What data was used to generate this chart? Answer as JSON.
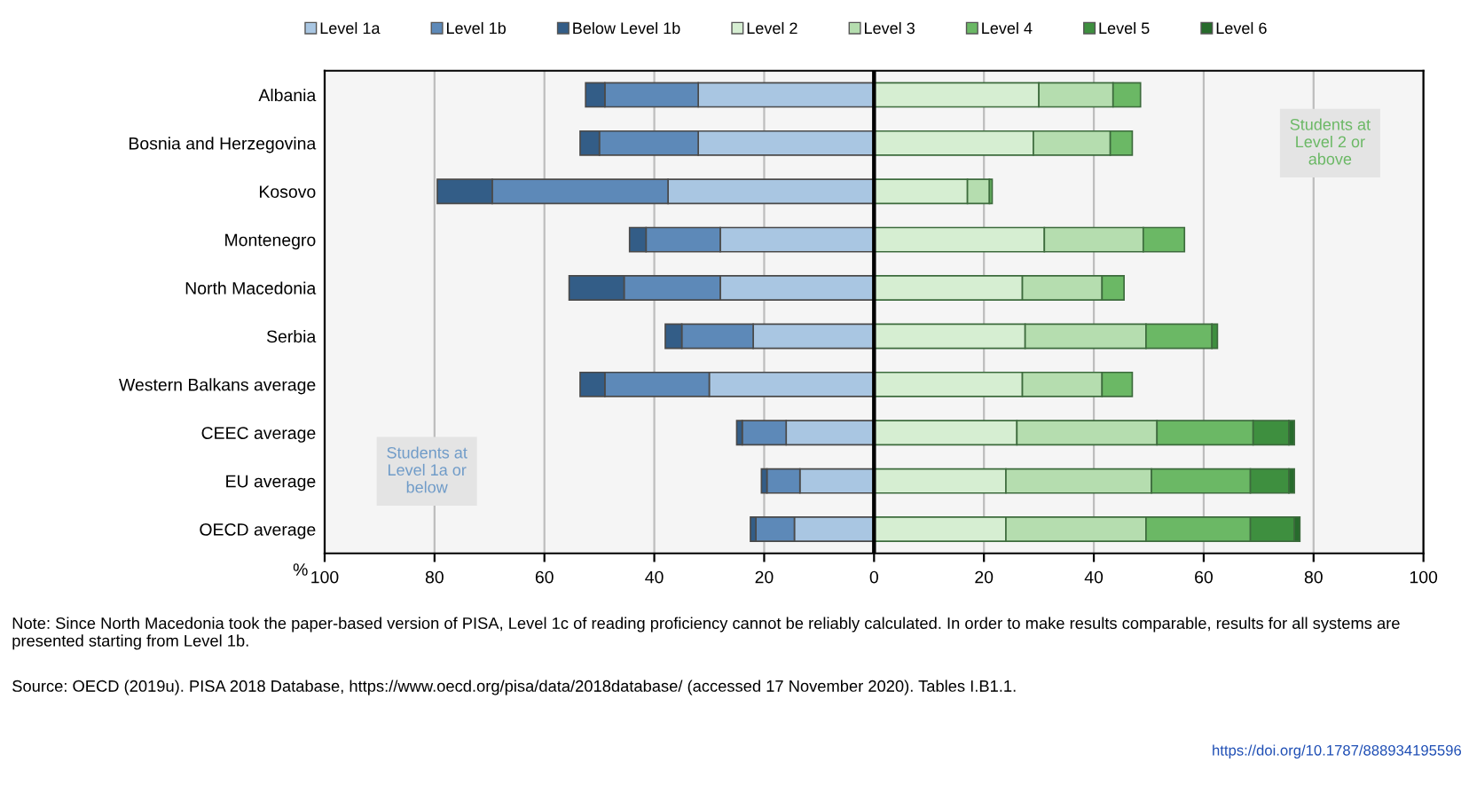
{
  "chart_data": {
    "type": "bar",
    "orientation": "horizontal",
    "stacked": true,
    "xlabel": "%",
    "categories": [
      "Albania",
      "Bosnia and Herzegovina",
      "Kosovo",
      "Montenegro",
      "North Macedonia",
      "Serbia",
      "Western Balkans average",
      "CEEC average",
      "EU average",
      "OECD average"
    ],
    "series": [
      {
        "name": "Level 1a",
        "color": "#a9c6e2",
        "values": [
          -32,
          -32,
          -37.5,
          -28,
          -28,
          -22,
          -30,
          -16,
          -13.5,
          -14.5
        ]
      },
      {
        "name": "Level 1b",
        "color": "#5d89b8",
        "values": [
          -17,
          -18,
          -32,
          -13.5,
          -17.5,
          -13,
          -19,
          -8,
          -6,
          -7
        ]
      },
      {
        "name": "Below Level 1b",
        "color": "#335d87",
        "values": [
          -3.5,
          -3.5,
          -10,
          -3,
          -10,
          -3,
          -4.5,
          -1,
          -1,
          -1
        ]
      },
      {
        "name": "Level 2",
        "color": "#d6eed2",
        "values": [
          30,
          29,
          17,
          31,
          27,
          27.5,
          27,
          26,
          24,
          24
        ]
      },
      {
        "name": "Level 3",
        "color": "#b5ddaf",
        "values": [
          13.5,
          14,
          4,
          18,
          14.5,
          22,
          14.5,
          25.5,
          26.5,
          25.5
        ]
      },
      {
        "name": "Level 4",
        "color": "#6bb865",
        "values": [
          5,
          4,
          0.5,
          7.5,
          4,
          12,
          5.5,
          17.5,
          18,
          19
        ]
      },
      {
        "name": "Level 5",
        "color": "#3e8f3f",
        "values": [
          null,
          null,
          null,
          null,
          null,
          1,
          null,
          6.5,
          7,
          8
        ]
      },
      {
        "name": "Level 6",
        "color": "#276b2c",
        "values": [
          null,
          null,
          null,
          null,
          null,
          null,
          null,
          1,
          1,
          1
        ]
      }
    ],
    "xlim": [
      -100,
      100
    ],
    "xticks": [
      {
        "value": -100,
        "label": "100"
      },
      {
        "value": -80,
        "label": "80"
      },
      {
        "value": -60,
        "label": "60"
      },
      {
        "value": -40,
        "label": "40"
      },
      {
        "value": -20,
        "label": "20"
      },
      0,
      20,
      40,
      60,
      80,
      100
    ],
    "ref_lines": [
      {
        "axis": "x",
        "value": 0,
        "color": "#000000"
      }
    ],
    "grid": "x",
    "legend": "top",
    "annotations": [
      "Students at Level 1a or below",
      "Students at Level 2 or above",
      "Note: Since North Macedonia took the paper-based version of PISA, Level 1c of reading proficiency cannot be reliably calculated. In order to make results comparable, results for all systems are presented starting from Level 1b.",
      "Source: OECD (2019u). PISA 2018 Database, https://www.oecd.org/pisa/data/2018database/ (accessed 17 November 2020). Tables I.B1.1.",
      "https://doi.org/10.1787/888934195596"
    ]
  }
}
